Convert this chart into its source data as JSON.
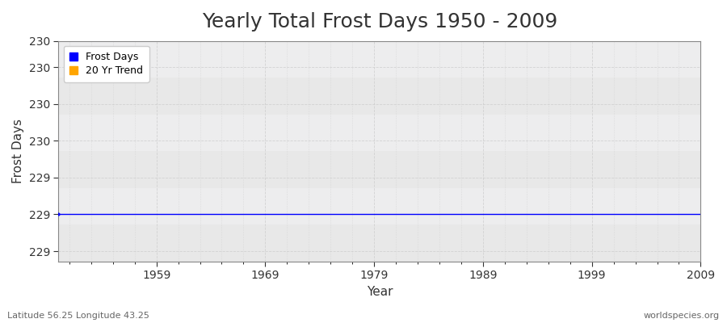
{
  "title": "Yearly Total Frost Days 1950 - 2009",
  "xlabel": "Year",
  "ylabel": "Frost Days",
  "subtitle": "Latitude 56.25 Longitude 43.25",
  "watermark": "worldspecies.org",
  "years": [
    1950,
    1951,
    1952,
    1953,
    1954,
    1955,
    1956,
    1957,
    1958,
    1959,
    1960,
    1961,
    1962,
    1963,
    1964,
    1965,
    1966,
    1967,
    1968,
    1969,
    1970,
    1971,
    1972,
    1973,
    1974,
    1975,
    1976,
    1977,
    1978,
    1979,
    1980,
    1981,
    1982,
    1983,
    1984,
    1985,
    1986,
    1987,
    1988,
    1989,
    1990,
    1991,
    1992,
    1993,
    1994,
    1995,
    1996,
    1997,
    1998,
    1999,
    2000,
    2001,
    2002,
    2003,
    2004,
    2005,
    2006,
    2007,
    2008,
    2009
  ],
  "frost_days": [
    229,
    229,
    229,
    229,
    229,
    229,
    229,
    229,
    229,
    229,
    229,
    229,
    229,
    229,
    229,
    229,
    229,
    229,
    229,
    229,
    229,
    229,
    229,
    229,
    229,
    229,
    229,
    229,
    229,
    229,
    229,
    229,
    229,
    229,
    229,
    229,
    229,
    229,
    229,
    229,
    229,
    229,
    229,
    229,
    229,
    229,
    229,
    229,
    229,
    229,
    229,
    229,
    229,
    229,
    229,
    229,
    229,
    229,
    229,
    229
  ],
  "frost_color": "#0000ff",
  "trend_color": "#ffa500",
  "bg_color": "#ffffff",
  "plot_bg_color": "#f0f0f0",
  "band_color_light": "#ebebeb",
  "band_color_dark": "#e0e0e0",
  "grid_color": "#cccccc",
  "spine_color": "#888888",
  "text_color": "#333333",
  "subtitle_color": "#666666",
  "ylim_min": 228.55,
  "ylim_max": 230.65,
  "xlim_min": 1950,
  "xlim_max": 2009,
  "ytick_positions": [
    228.65,
    229.0,
    229.35,
    229.7,
    230.05,
    230.4,
    230.65
  ],
  "ytick_labels": [
    "229",
    "229",
    "229",
    "230",
    "230",
    "230",
    "230"
  ],
  "xtick_positions": [
    1959,
    1969,
    1979,
    1989,
    1999,
    2009
  ],
  "title_fontsize": 18,
  "axis_label_fontsize": 11,
  "tick_fontsize": 10,
  "legend_fontsize": 9
}
